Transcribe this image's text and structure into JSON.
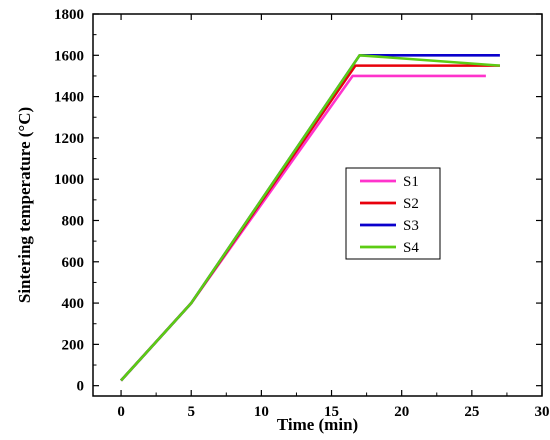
{
  "chart_data": {
    "type": "line",
    "title": "",
    "xlabel": "Time (min)",
    "ylabel": "Sintering temperature (°C)",
    "xlim": [
      -2,
      30
    ],
    "ylim": [
      -50,
      1800
    ],
    "xticks": [
      0,
      5,
      10,
      15,
      20,
      25,
      30
    ],
    "yticks": [
      0,
      200,
      400,
      600,
      800,
      1000,
      1200,
      1400,
      1600,
      1800
    ],
    "xtick_labels": [
      "0",
      "5",
      "10",
      "15",
      "20",
      "25",
      "30"
    ],
    "ytick_labels": [
      "0",
      "200",
      "400",
      "600",
      "800",
      "1000",
      "1200",
      "1400",
      "1600",
      "1800"
    ],
    "grid": false,
    "legend_position": "center-right",
    "series": [
      {
        "name": "S1",
        "color": "#ff33cc",
        "points": [
          [
            0,
            25
          ],
          [
            5,
            400
          ],
          [
            16.5,
            1500
          ],
          [
            26,
            1500
          ]
        ]
      },
      {
        "name": "S2",
        "color": "#e8000b",
        "points": [
          [
            0,
            25
          ],
          [
            5,
            400
          ],
          [
            16.7,
            1550
          ],
          [
            27,
            1550
          ]
        ]
      },
      {
        "name": "S3",
        "color": "#0a00cc",
        "points": [
          [
            0,
            25
          ],
          [
            5,
            400
          ],
          [
            17,
            1600
          ],
          [
            27,
            1600
          ]
        ]
      },
      {
        "name": "S4",
        "color": "#5ccc14",
        "points": [
          [
            0,
            25
          ],
          [
            5,
            400
          ],
          [
            17,
            1600
          ],
          [
            27,
            1550
          ]
        ]
      }
    ]
  }
}
